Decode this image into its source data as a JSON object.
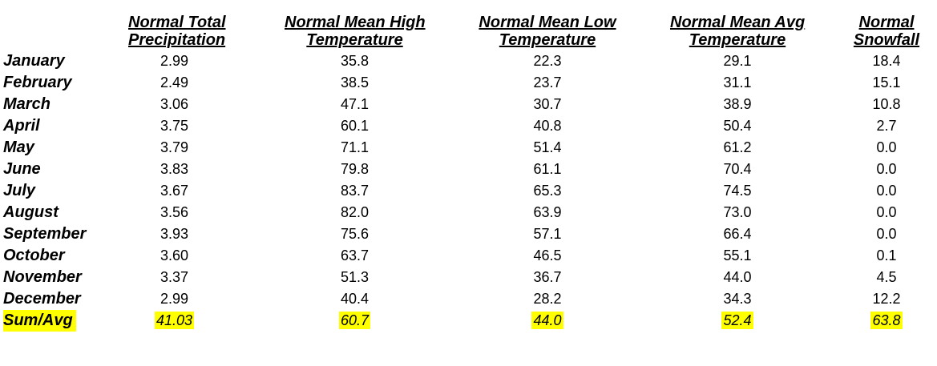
{
  "headers": [
    {
      "line1": "Normal Total",
      "line2": "Precipitation"
    },
    {
      "line1": "Normal Mean High",
      "line2": "Temperature"
    },
    {
      "line1": "Normal Mean Low",
      "line2": "Temperature"
    },
    {
      "line1": "Normal Mean Avg",
      "line2": "Temperature"
    },
    {
      "line1": "Normal",
      "line2": "Snowfall"
    }
  ],
  "rows": [
    {
      "month": "January",
      "values": [
        "2.99",
        "35.8",
        "22.3",
        "29.1",
        "18.4"
      ]
    },
    {
      "month": "February",
      "values": [
        "2.49",
        "38.5",
        "23.7",
        "31.1",
        "15.1"
      ]
    },
    {
      "month": "March",
      "values": [
        "3.06",
        "47.1",
        "30.7",
        "38.9",
        "10.8"
      ]
    },
    {
      "month": "April",
      "values": [
        "3.75",
        "60.1",
        "40.8",
        "50.4",
        "2.7"
      ]
    },
    {
      "month": "May",
      "values": [
        "3.79",
        "71.1",
        "51.4",
        "61.2",
        "0.0"
      ]
    },
    {
      "month": "June",
      "values": [
        "3.83",
        "79.8",
        "61.1",
        "70.4",
        "0.0"
      ]
    },
    {
      "month": "July",
      "values": [
        "3.67",
        "83.7",
        "65.3",
        "74.5",
        "0.0"
      ]
    },
    {
      "month": "August",
      "values": [
        "3.56",
        "82.0",
        "63.9",
        "73.0",
        "0.0"
      ]
    },
    {
      "month": "September",
      "values": [
        "3.93",
        "75.6",
        "57.1",
        "66.4",
        "0.0"
      ]
    },
    {
      "month": "October",
      "values": [
        "3.60",
        "63.7",
        "46.5",
        "55.1",
        "0.1"
      ]
    },
    {
      "month": "November",
      "values": [
        "3.37",
        "51.3",
        "36.7",
        "44.0",
        "4.5"
      ]
    },
    {
      "month": "December",
      "values": [
        "2.99",
        "40.4",
        "28.2",
        "34.3",
        "12.2"
      ]
    }
  ],
  "total": {
    "label": "Sum/Avg",
    "values": [
      "41.03",
      "60.7",
      "44.0",
      "52.4",
      "63.8"
    ]
  },
  "colors": {
    "highlight": "#ffff00"
  }
}
